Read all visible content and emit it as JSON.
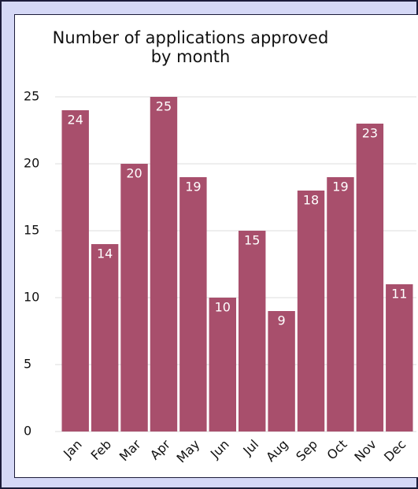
{
  "chart_data": {
    "type": "bar",
    "title": "Number of applications approved by month",
    "categories": [
      "Jan",
      "Feb",
      "Mar",
      "Apr",
      "May",
      "Jun",
      "Jul",
      "Aug",
      "Sep",
      "Oct",
      "Nov",
      "Dec"
    ],
    "values": [
      24,
      14,
      20,
      25,
      19,
      10,
      15,
      9,
      18,
      19,
      23,
      11
    ],
    "color": "#a84f6c",
    "ylim": [
      0,
      25
    ],
    "yticks": [
      0,
      5,
      10,
      15,
      20,
      25
    ],
    "grid": true
  }
}
